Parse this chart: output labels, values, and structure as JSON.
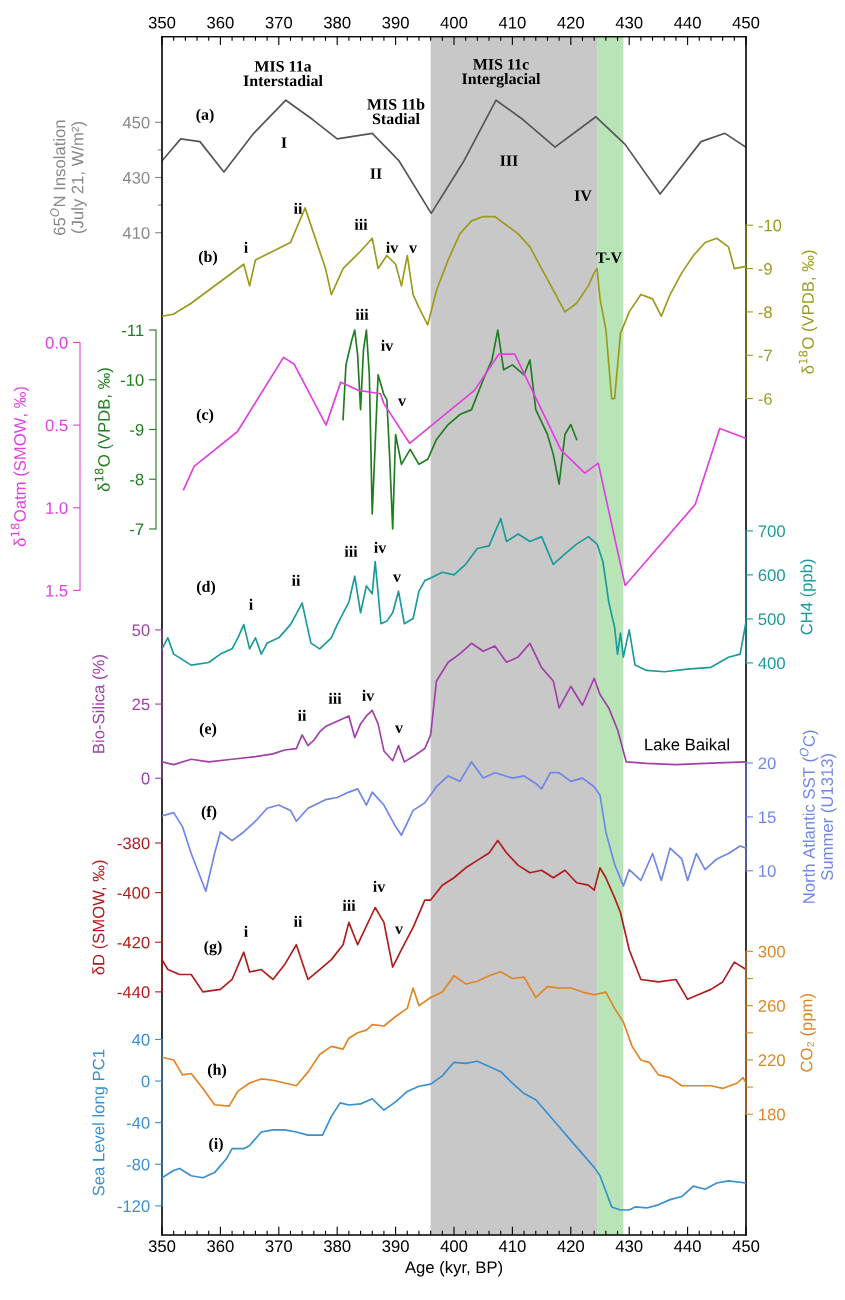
{
  "chart_data": [
    {
      "type": "line",
      "xlabel": "Age (kyr, BP)",
      "xlim": [
        350,
        450
      ],
      "xticks": [
        350,
        {
          "value": 352,
          "label": null
        },
        {
          "value": 354,
          "label": null
        },
        {
          "value": 356,
          "label": null
        },
        {
          "value": 358,
          "label": null
        },
        360,
        {
          "value": 362,
          "label": null
        },
        {
          "value": 364,
          "label": null
        },
        {
          "value": 366,
          "label": null
        },
        {
          "value": 368,
          "label": null
        },
        370,
        {
          "value": 372,
          "label": null
        },
        {
          "value": 374,
          "label": null
        },
        {
          "value": 376,
          "label": null
        },
        {
          "value": 378,
          "label": null
        },
        380,
        {
          "value": 382,
          "label": null
        },
        {
          "value": 384,
          "label": null
        },
        {
          "value": 386,
          "label": null
        },
        {
          "value": 388,
          "label": null
        },
        390,
        {
          "value": 392,
          "label": null
        },
        {
          "value": 394,
          "label": null
        },
        {
          "value": 396,
          "label": null
        },
        {
          "value": 398,
          "label": null
        },
        400,
        {
          "value": 402,
          "label": null
        },
        {
          "value": 404,
          "label": null
        },
        {
          "value": 406,
          "label": null
        },
        {
          "value": 408,
          "label": null
        },
        410,
        {
          "value": 412,
          "label": null
        },
        {
          "value": 414,
          "label": null
        },
        {
          "value": 416,
          "label": null
        },
        {
          "value": 418,
          "label": null
        },
        420,
        {
          "value": 422,
          "label": null
        },
        {
          "value": 424,
          "label": null
        },
        {
          "value": 426,
          "label": null
        },
        {
          "value": 428,
          "label": null
        },
        430,
        {
          "value": 432,
          "label": null
        },
        {
          "value": 434,
          "label": null
        },
        {
          "value": 436,
          "label": null
        },
        {
          "value": 438,
          "label": null
        },
        440,
        {
          "value": 442,
          "label": null
        },
        {
          "value": 444,
          "label": null
        },
        {
          "value": 446,
          "label": null
        },
        {
          "value": 448,
          "label": null
        },
        450
      ],
      "x2lim": [
        350,
        450
      ],
      "x2ticks": [
        350,
        {
          "value": 352,
          "label": null
        },
        {
          "value": 354,
          "label": null
        },
        {
          "value": 356,
          "label": null
        },
        {
          "value": 358,
          "label": null
        },
        360,
        {
          "value": 362,
          "label": null
        },
        {
          "value": 364,
          "label": null
        },
        {
          "value": 366,
          "label": null
        },
        {
          "value": 368,
          "label": null
        },
        370,
        {
          "value": 372,
          "label": null
        },
        {
          "value": 374,
          "label": null
        },
        {
          "value": 376,
          "label": null
        },
        {
          "value": 378,
          "label": null
        },
        380,
        {
          "value": 382,
          "label": null
        },
        {
          "value": 384,
          "label": null
        },
        {
          "value": 386,
          "label": null
        },
        {
          "value": 388,
          "label": null
        },
        390,
        {
          "value": 392,
          "label": null
        },
        {
          "value": 394,
          "label": null
        },
        {
          "value": 396,
          "label": null
        },
        {
          "value": 398,
          "label": null
        },
        400,
        {
          "value": 402,
          "label": null
        },
        {
          "value": 404,
          "label": null
        },
        {
          "value": 406,
          "label": null
        },
        {
          "value": 408,
          "label": null
        },
        410,
        {
          "value": 412,
          "label": null
        },
        {
          "value": 414,
          "label": null
        },
        {
          "value": 416,
          "label": null
        },
        {
          "value": 418,
          "label": null
        },
        420,
        {
          "value": 422,
          "label": null
        },
        {
          "value": 424,
          "label": null
        },
        {
          "value": 426,
          "label": null
        },
        {
          "value": 428,
          "label": null
        },
        430,
        {
          "value": 432,
          "label": null
        },
        {
          "value": 434,
          "label": null
        },
        {
          "value": 436,
          "label": null
        },
        {
          "value": 438,
          "label": null
        },
        440,
        {
          "value": 442,
          "label": null
        },
        {
          "value": 444,
          "label": null
        },
        {
          "value": 446,
          "label": null
        },
        {
          "value": 448,
          "label": null
        },
        450
      ],
      "ylabel": "65$^{O}$N Insolation\n(July 21, W/m²)",
      "ylim": [
        47,
        481
      ],
      "yticks": [
        410,
        {
          "value": 420,
          "label": null
        },
        430,
        {
          "value": 440,
          "label": null
        },
        450
      ],
      "y2label": "δ$^{18}$O (VPDB, ‰)",
      "y2lim": [
        13.3,
        -14.35
      ],
      "y2ticks": [
        -10,
        -9,
        -8,
        -7,
        -6
      ],
      "bands": [
        {
          "axis": "x",
          "from": 396,
          "to": 424.5,
          "color": "#c8c8c8"
        },
        {
          "axis": "x",
          "from": 424.5,
          "to": 429,
          "color": "#b8e4b8"
        }
      ],
      "series": [
        {
          "axis": "y",
          "color": "#555555",
          "x": [
            350,
            353.2,
            356.5,
            360.6,
            365.7,
            371.2,
            375.8,
            380,
            386,
            390.6,
            396.1,
            401.7,
            407.2,
            411.8,
            417.3,
            424.3,
            429.3,
            435.3,
            442.3,
            446.4,
            450
          ],
          "values": [
            436,
            444,
            443,
            432,
            446,
            458,
            451,
            444,
            446,
            436,
            417,
            436,
            458,
            451,
            441,
            452,
            442,
            424,
            443,
            446,
            441
          ]
        },
        {
          "axis": "y2",
          "color": "#9c9a1c",
          "x": [
            350,
            352,
            355,
            358,
            361,
            364,
            365,
            366,
            369,
            372,
            374.5,
            376,
            378,
            379,
            381,
            384,
            386,
            387,
            388.5,
            390,
            391,
            392,
            393,
            394,
            395.5,
            397,
            399,
            401,
            403,
            405,
            407,
            409,
            411,
            413,
            415,
            417,
            419,
            421,
            423,
            424,
            424.5,
            425,
            426,
            427,
            427.5,
            428.5,
            430,
            432,
            434,
            435.5,
            437,
            439,
            441,
            443,
            445,
            447,
            448,
            450
          ],
          "values": [
            -7.9,
            -7.95,
            -8.2,
            -8.5,
            -8.8,
            -9.1,
            -8.6,
            -9.2,
            -9.4,
            -9.6,
            -10.4,
            -9.8,
            -9.0,
            -8.4,
            -9.0,
            -9.4,
            -9.7,
            -9.0,
            -9.3,
            -9.1,
            -8.6,
            -9.3,
            -8.4,
            -8.1,
            -7.7,
            -8.5,
            -9.2,
            -9.8,
            -10.1,
            -10.2,
            -10.2,
            -10.0,
            -9.8,
            -9.5,
            -9.0,
            -8.5,
            -8.0,
            -8.2,
            -8.6,
            -8.9,
            -9.0,
            -8.3,
            -7.6,
            -6.0,
            -6.0,
            -7.5,
            -8.0,
            -8.4,
            -8.3,
            -7.9,
            -8.4,
            -8.9,
            -9.3,
            -9.6,
            -9.7,
            -9.5,
            -9.0,
            -9.05
          ]
        }
      ],
      "annotations": [
        "MIS 11a\nInterstadial",
        "MIS 11b\nStadial",
        "MIS 11c\nInterglacial",
        "(a)",
        "I",
        "II",
        "III",
        "IV",
        "(b)",
        "i",
        "ii",
        "iii",
        "iv",
        "v",
        "T-V"
      ]
    },
    {
      "type": "line",
      "xlim": [
        350,
        450
      ],
      "tick_labels": "y",
      "ylabel": "δ$^{18}$O (VPDB, ‰)",
      "ylim": [
        7.2,
        -16.9
      ],
      "yticks": [
        -11,
        -10,
        -9,
        -8,
        -7
      ],
      "series": [
        {
          "axis": "y",
          "color": "#1f7d1f",
          "x": [
            381,
            381.5,
            382.5,
            383,
            383.5,
            384,
            384.5,
            385,
            385.5,
            386,
            387,
            388,
            388.5,
            389,
            389.5,
            390,
            391,
            392.5,
            394,
            395.5,
            397,
            399,
            401,
            403,
            405,
            406.5,
            407.5,
            408.5,
            410,
            412,
            413,
            414,
            416,
            417,
            418,
            419,
            420,
            421
          ],
          "values": [
            -9.2,
            -10.3,
            -10.8,
            -11.0,
            -10.5,
            -9.4,
            -10.6,
            -11.0,
            -10.1,
            -7.3,
            -10.1,
            -9.7,
            -9.6,
            -8.4,
            -7.0,
            -8.9,
            -8.3,
            -8.6,
            -8.3,
            -8.4,
            -8.8,
            -9.1,
            -9.3,
            -9.4,
            -10.0,
            -10.4,
            -11.0,
            -10.2,
            -10.3,
            -10.1,
            -10.4,
            -9.4,
            -8.9,
            -8.5,
            -7.9,
            -8.9,
            -9.1,
            -8.8
          ]
        }
      ],
      "annotations": [
        "iii",
        "iv",
        "v",
        "(c)"
      ]
    },
    {
      "type": "line",
      "xlim": [
        350,
        450
      ],
      "tick_labels": "y",
      "ylabel": "δ$^{18}$Oatm (SMOW, ‰)",
      "ylim": [
        5.4,
        -1.85
      ],
      "yticks": [
        {
          "value": 0,
          "label": "0.0"
        },
        {
          "value": 0.5,
          "label": "0.5"
        },
        {
          "value": 1,
          "label": "1.0"
        },
        {
          "value": 1.5,
          "label": "1.5"
        }
      ],
      "series": [
        {
          "axis": "y",
          "color": "#e040e0",
          "x": [
            353.7,
            355.5,
            362.9,
            370.8,
            372.6,
            378.1,
            380.6,
            383.7,
            387.4,
            388,
            392.4,
            403.5,
            407.7,
            410.4,
            418.3,
            422.4,
            424.7,
            429.3,
            441.3,
            445.5,
            450
          ],
          "values": [
            0.89,
            0.75,
            0.54,
            0.09,
            0.13,
            0.5,
            0.24,
            0.29,
            0.31,
            0.37,
            0.61,
            0.29,
            0.07,
            0.07,
            0.65,
            0.79,
            0.73,
            1.47,
            0.98,
            0.52,
            0.58
          ]
        }
      ]
    },
    {
      "type": "line",
      "xlim": [
        350,
        450
      ],
      "tick_labels": "y",
      "y2label": "CH4 (ppb)",
      "y2lim": [
        -900,
        1823
      ],
      "y2ticks": [
        400,
        500,
        600,
        700
      ],
      "series": [
        {
          "axis": "y2",
          "color": "#1a9a9a",
          "x": [
            350,
            351,
            352,
            355,
            358,
            360,
            362,
            363,
            364,
            365,
            366,
            367,
            368,
            370,
            372,
            374,
            375.5,
            377,
            379,
            380,
            382,
            383,
            384,
            385,
            386,
            386.5,
            387.5,
            388.5,
            389.5,
            390.5,
            391.5,
            393,
            394,
            395,
            396,
            398,
            400,
            402,
            404,
            406,
            408,
            409,
            411,
            413,
            415,
            417,
            419,
            421,
            423,
            424.5,
            425.5,
            426.5,
            427.5,
            428,
            428.5,
            429,
            430,
            431,
            433,
            436,
            440,
            444,
            447,
            449,
            450
          ],
          "values": [
            432,
            457,
            420,
            395,
            401,
            420,
            432,
            457,
            487,
            432,
            457,
            420,
            445,
            457,
            487,
            536,
            445,
            432,
            457,
            487,
            538,
            597,
            514,
            575,
            557,
            630,
            489,
            495,
            514,
            563,
            489,
            501,
            563,
            587,
            593,
            606,
            600,
            624,
            660,
            666,
            728,
            676,
            693,
            676,
            687,
            624,
            648,
            670,
            687,
            670,
            630,
            538,
            481,
            420,
            468,
            413,
            475,
            395,
            383,
            380,
            386,
            390,
            413,
            420,
            493
          ]
        }
      ],
      "annotations": [
        "i",
        "ii",
        "iii",
        "iv",
        "v",
        "(d)"
      ]
    },
    {
      "type": "line",
      "xlim": [
        350,
        450
      ],
      "tick_labels": "y",
      "ylabel": "Bio-Silica (%)",
      "ylim": [
        -154,
        250
      ],
      "yticks": [
        0,
        25,
        50
      ],
      "series": [
        {
          "axis": "y",
          "color": "#a040a8",
          "x": [
            350,
            352,
            355,
            358,
            362,
            366,
            369,
            371,
            373,
            374,
            375,
            376,
            377,
            378,
            380,
            382,
            383,
            384,
            385,
            386,
            387,
            388,
            389.5,
            390.5,
            391.5,
            393,
            395,
            396,
            397,
            399,
            401,
            403,
            405,
            407,
            409,
            411,
            413,
            415,
            417,
            418,
            420,
            422,
            424,
            425,
            426.5,
            428,
            429.5,
            433,
            438,
            443,
            450
          ],
          "values": [
            5.5,
            4.6,
            6.4,
            5.5,
            6.4,
            7.3,
            8.2,
            9.5,
            10,
            14.6,
            11,
            12.8,
            15.6,
            17.4,
            19.2,
            21,
            13.7,
            18.3,
            21,
            22.9,
            18.3,
            9.2,
            5.9,
            11,
            5.5,
            7.3,
            10,
            14.6,
            32.8,
            39.1,
            41.9,
            45.5,
            42.8,
            44.6,
            39.1,
            40.9,
            45.5,
            37.3,
            32.8,
            23.7,
            31,
            24.6,
            33.7,
            28.2,
            23.7,
            16.4,
            5.5,
            5,
            4.6,
            5,
            5.5
          ]
        }
      ],
      "annotations": [
        "ii",
        "iii",
        "iv",
        "v",
        "(e)",
        "Lake Baikal"
      ]
    },
    {
      "type": "line",
      "xlim": [
        350,
        450
      ],
      "tick_labels": "y",
      "y2label": "North Atlantic SST ($^{O}$C)\nSummer (U1313)",
      "y2lim": [
        -23.8,
        87.4
      ],
      "y2ticks": [
        10,
        15,
        20
      ],
      "series": [
        {
          "axis": "y2",
          "color": "#6f85e8",
          "x": [
            350,
            352,
            353.5,
            355,
            357.5,
            359,
            360,
            362,
            364,
            366,
            368,
            370,
            372,
            373,
            375,
            378,
            380,
            382,
            383.5,
            385,
            386,
            388,
            390,
            391,
            393,
            395,
            397,
            399,
            401,
            403,
            405,
            407,
            410,
            412,
            414,
            415,
            416.5,
            418,
            420,
            422,
            424,
            425,
            426,
            427.5,
            429,
            430,
            432,
            434,
            435.5,
            437,
            439,
            440,
            441.5,
            443,
            445,
            447,
            449,
            450
          ],
          "values": [
            15.1,
            15.4,
            14.1,
            11.6,
            8.1,
            11.6,
            13.6,
            12.8,
            13.6,
            14.6,
            15.8,
            16.1,
            15.6,
            14.6,
            15.8,
            16.6,
            16.8,
            17.3,
            17.6,
            16.1,
            17.3,
            16.1,
            14.1,
            13.3,
            15.6,
            16.3,
            17.8,
            18.8,
            18.3,
            20.1,
            18.6,
            19.1,
            18.6,
            18.8,
            18.1,
            17.6,
            19.1,
            19.1,
            18.3,
            18.6,
            17.8,
            17.0,
            13.6,
            10.6,
            8.6,
            10.1,
            9.1,
            11.6,
            9.1,
            12.1,
            11.1,
            9.1,
            11.6,
            10.1,
            11.1,
            11.6,
            12.3,
            12.1
          ]
        }
      ],
      "annotations": [
        "(f)"
      ]
    },
    {
      "type": "line",
      "xlim": [
        350,
        450
      ],
      "tick_labels": "y",
      "ylabel": "δD (SMOW, ‰)",
      "ylim": [
        -538,
        -55
      ],
      "yticks": [
        -440,
        -420,
        -400,
        -380
      ],
      "series": [
        {
          "axis": "y",
          "color": "#b01c1c",
          "x": [
            350,
            351,
            353,
            355,
            357,
            360,
            362,
            364,
            365,
            367,
            369,
            371,
            373,
            375,
            377,
            379,
            381,
            382,
            383.5,
            386.5,
            388,
            389.5,
            391,
            393,
            395,
            396,
            398,
            400,
            402,
            404,
            406,
            407.5,
            409,
            411,
            413,
            415,
            417,
            419,
            421,
            423,
            424,
            425,
            426,
            427.5,
            428.5,
            430,
            432,
            435,
            438,
            440,
            442,
            444,
            446,
            448,
            450
          ],
          "values": [
            -427,
            -431,
            -433,
            -433,
            -440,
            -439,
            -435,
            -424,
            -432,
            -431,
            -435,
            -429,
            -421,
            -435,
            -431,
            -427,
            -421,
            -412,
            -421,
            -406,
            -412,
            -430,
            -423,
            -414,
            -403,
            -403,
            -397,
            -394,
            -390,
            -387,
            -384,
            -379,
            -384,
            -389,
            -392,
            -391,
            -394,
            -391,
            -396,
            -397,
            -399,
            -390,
            -394,
            -402,
            -408,
            -423,
            -435,
            -436,
            -435,
            -443,
            -441,
            -439,
            -436,
            -428,
            -431
          ]
        }
      ],
      "annotations": [
        "i",
        "ii",
        "iii",
        "iv",
        "v",
        "(g)"
      ]
    },
    {
      "type": "line",
      "xlim": [
        350,
        450
      ],
      "tick_labels": "y",
      "y2label": "CO₂ (ppm)",
      "y2lim": [
        91,
        974
      ],
      "y2ticks": [
        180,
        {
          "value": 200,
          "label": null
        },
        220,
        {
          "value": 240,
          "label": null
        },
        260,
        {
          "value": 280,
          "label": null
        },
        300
      ],
      "series": [
        {
          "axis": "y2",
          "color": "#e08424",
          "x": [
            350,
            352,
            353.5,
            355,
            357,
            359,
            361.5,
            363,
            365,
            367,
            369,
            371,
            373,
            375,
            377,
            379,
            381,
            382,
            383.5,
            385,
            386,
            388,
            390,
            392,
            393,
            394,
            396,
            398,
            400,
            402,
            404,
            406,
            408,
            410,
            412,
            414,
            416,
            418,
            420,
            422,
            424,
            426,
            427.5,
            429,
            430.5,
            432,
            433.5,
            435,
            437,
            439,
            441,
            444,
            446,
            448.5,
            449.5,
            450
          ],
          "values": [
            222,
            220,
            209,
            210,
            199,
            187,
            186,
            197,
            203,
            206,
            205,
            203,
            201,
            211,
            224,
            230,
            228,
            236,
            240,
            242,
            246,
            245,
            252,
            258,
            273,
            260,
            266,
            270,
            282,
            276,
            278,
            282,
            285,
            280,
            281,
            266,
            274,
            273,
            273,
            270,
            268,
            270,
            258,
            248,
            230,
            220,
            218,
            209,
            207,
            201,
            201,
            201,
            199,
            203,
            207,
            203
          ]
        }
      ],
      "annotations": [
        "(h)"
      ]
    },
    {
      "type": "line",
      "xlim": [
        350,
        450
      ],
      "tick_labels": "y",
      "ylabel": "Sea Level long PC1",
      "ylim": [
        -148,
        1004
      ],
      "yticks": [
        -120,
        -80,
        -40,
        0,
        40
      ],
      "series": [
        {
          "axis": "y",
          "color": "#3a8fd0",
          "x": [
            350,
            352,
            353,
            355,
            357,
            359,
            361,
            362,
            364,
            365,
            367,
            369,
            371,
            373,
            375,
            377.5,
            379,
            380.5,
            382,
            384,
            386,
            388,
            390,
            392,
            394,
            396,
            398,
            400,
            402,
            404,
            406,
            408,
            410,
            412,
            414,
            416,
            418,
            420,
            422,
            424,
            425,
            426,
            427,
            428.5,
            430,
            431,
            433,
            435,
            437,
            439,
            441,
            443,
            445,
            447,
            450
          ],
          "values": [
            -93,
            -86,
            -84,
            -91,
            -93,
            -88,
            -75,
            -65,
            -65,
            -62,
            -49,
            -47,
            -47,
            -49,
            -52,
            -52,
            -34,
            -21,
            -23,
            -22,
            -17,
            -28,
            -20,
            -10,
            -5,
            -3,
            5,
            18,
            17,
            19,
            14,
            9,
            -2,
            -12,
            -18,
            -31,
            -44,
            -57,
            -70,
            -83,
            -91,
            -106,
            -121,
            -124,
            -124,
            -121,
            -122,
            -119,
            -114,
            -111,
            -101,
            -104,
            -98,
            -96,
            -98
          ]
        }
      ],
      "annotations": [
        "(i)"
      ]
    }
  ]
}
